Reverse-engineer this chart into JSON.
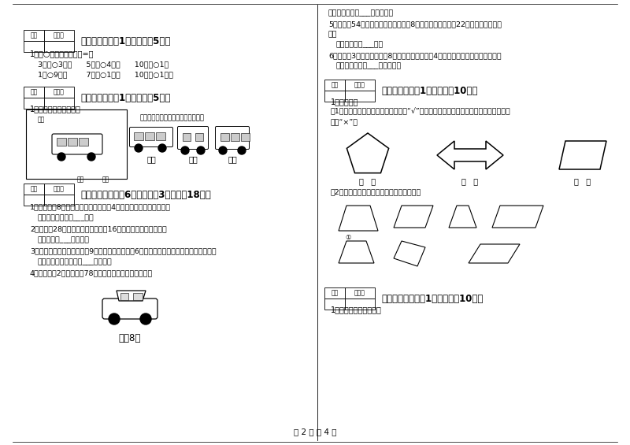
{
  "title": "第 2 页 共 4 页",
  "bg_color": "#ffffff",
  "left_col": {
    "section6_header": "六、比一比（共1大题，共芈5分）",
    "section6_q1": "1、在○里填上＞、＜或=。",
    "section6_row1": "3厘米○3分米      5毫米○4厘米      10厘米○1米",
    "section6_row2": "1米○9分米        7毫米○1分米      10厘米○1分米",
    "section7_header": "七、连一连（共1大题，共芈5分）",
    "section7_q1": "1、观察物体，连一连。",
    "section7_bubble": "请你连一连，下面分别是谁看到的？",
    "section7_labels": [
      "小红",
      "小车",
      "小明"
    ],
    "section8_header": "八、解决问题（共6小题，每题3分，共舉18分）",
    "section8_q1": "1、小明今年8岁，爸爸的年龄是小明的4倍，爸爸比小明大多少岁？",
    "section8_a1": "答：爸爸比小明大___岁。",
    "section8_q2": "2、小青朦28张照片，黑片比彩片多16张，小青有多少张照片？",
    "section8_a2": "答：小青有___张照片。",
    "section8_q3": "3、爸爸、婈婈和我分别摘了9个玉米，小弟弟摘了6个，问我们全家一共摘了多少个玉米？",
    "section8_a3": "答：我们全家一共摘了___个玉米。",
    "section8_q4": "4、希望小学2年级有学生78人，至少需要租几辆面包车？",
    "section8_car_label": "限表8人"
  },
  "right_col": {
    "section_ans_top": "答：至少需要租___辆面包车。",
    "section8_q5_l1": "5、面包户54个面包，第一队小朋友了8个，第二队小朋友了22个，现在剩下多少",
    "section8_q5_l2": "个？",
    "section8_a5": "答：现在剩下___个。",
    "section8_q6": "6、学校久3盒乓乓球，每盒8个，平均发给二年级4个班，每个班分得几个乓乓球？",
    "section8_a6": "答：每个班分得___个乓乓球。",
    "section10_header": "十、综合题（共1大题，共舉10分）",
    "section10_q1": "1、画一画。",
    "section10_q1a_l1": "（1）下面的图形中是轴对称图形的画“√”，并画出它其中一条对称轴，不是轴对称图形",
    "section10_q1a_l2": "的画“×”。",
    "section10_q1b": "（2）把此图形平移后得到的图形涂上颜色。",
    "section11_header": "十一、附加题（共1大题，共舉10分）",
    "section11_q1": "1、根据图片信息解题。"
  }
}
